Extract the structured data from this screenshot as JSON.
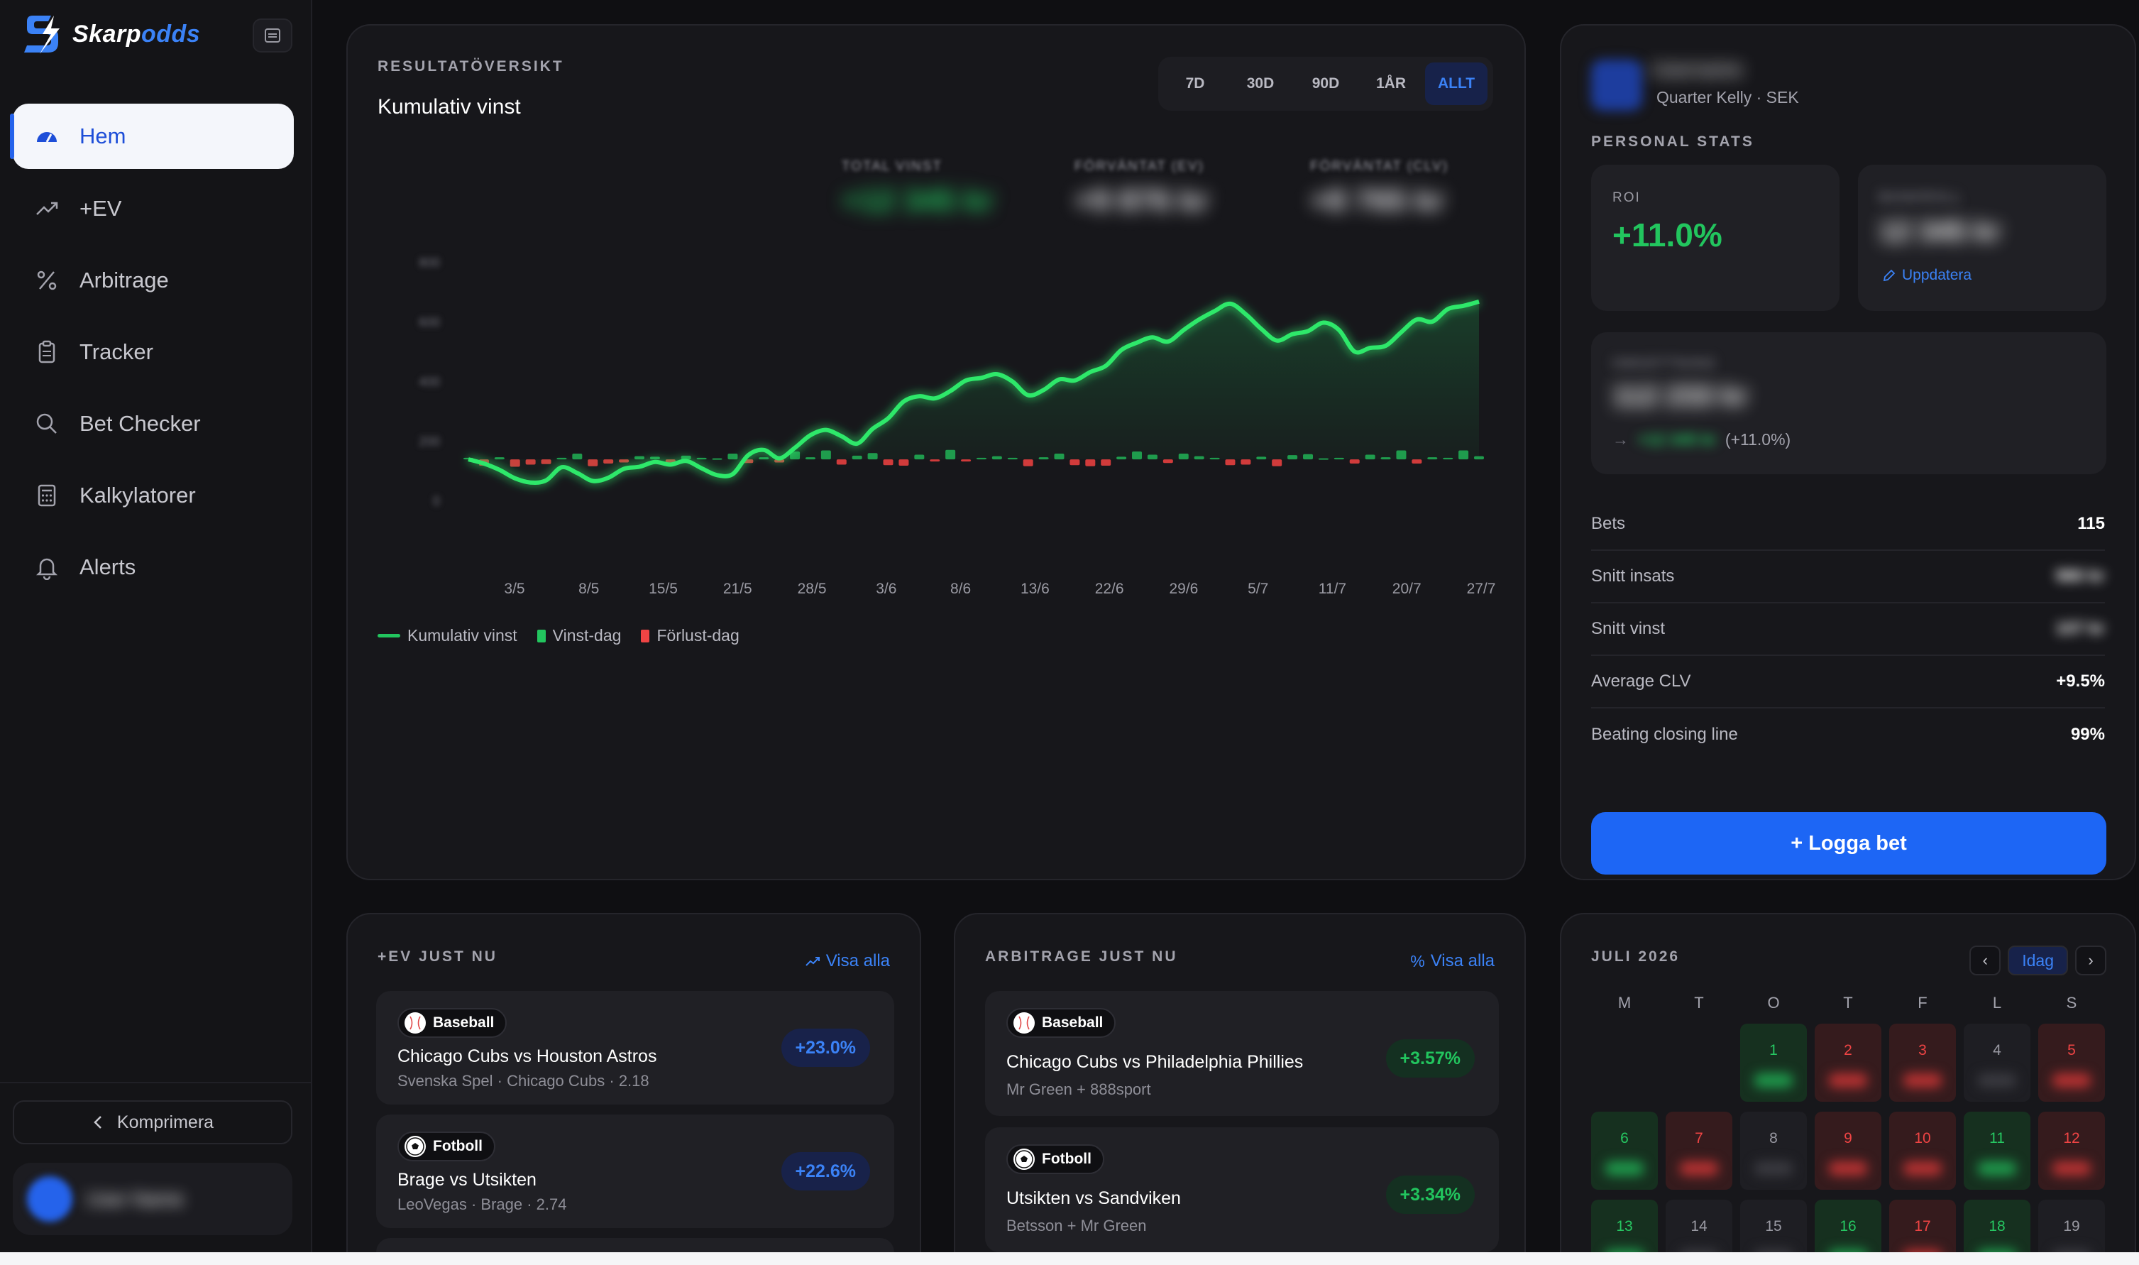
{
  "brand": {
    "name_main": "Skarp",
    "name_accent": "odds"
  },
  "sidebar": {
    "items": [
      {
        "label": "Hem",
        "icon": "dashboard-icon",
        "active": true
      },
      {
        "label": "+EV",
        "icon": "trending-up-icon"
      },
      {
        "label": "Arbitrage",
        "icon": "percent-icon"
      },
      {
        "label": "Tracker",
        "icon": "clipboard-icon"
      },
      {
        "label": "Bet Checker",
        "icon": "search-icon"
      },
      {
        "label": "Kalkylatorer",
        "icon": "calculator-icon"
      },
      {
        "label": "Alerts",
        "icon": "bell-icon"
      }
    ],
    "collapse_label": "Komprimera",
    "user_name": "User Name"
  },
  "overview": {
    "section": "RESULTATÖVERSIKT",
    "title": "Kumulativ vinst",
    "ranges": [
      "7D",
      "30D",
      "90D",
      "1ÅR",
      "ALLT"
    ],
    "active_range": "ALLT",
    "metrics": [
      {
        "label": "TOTAL VINST",
        "value": "+12 345 kr",
        "color": "#22c55e"
      },
      {
        "label": "FÖRVÄNTAT (EV)",
        "value": "+9 876 kr",
        "color": "#e8e8ec"
      },
      {
        "label": "FÖRVÄNTAT (CLV)",
        "value": "+8 765 kr",
        "color": "#e8e8ec"
      }
    ],
    "legend": {
      "line": "Kumulativ vinst",
      "win": "Vinst-dag",
      "loss": "Förlust-dag"
    }
  },
  "chart_data": {
    "type": "line",
    "x_labels": [
      "3/5",
      "8/5",
      "15/5",
      "21/5",
      "28/5",
      "3/6",
      "8/6",
      "13/6",
      "22/6",
      "29/6",
      "5/7",
      "11/7",
      "20/7",
      "27/7"
    ],
    "y_labels_blurred": [
      "800",
      "600",
      "400",
      "200",
      "0"
    ],
    "ylim": [
      -120,
      420
    ],
    "cumulative": [
      0,
      -8,
      -20,
      -36,
      -44,
      -40,
      -15,
      -26,
      -41,
      -35,
      -18,
      -14,
      -5,
      -10,
      -3,
      -17,
      -30,
      -28,
      8,
      18,
      2,
      22,
      46,
      56,
      44,
      30,
      58,
      78,
      110,
      120,
      116,
      130,
      150,
      155,
      162,
      148,
      122,
      132,
      152,
      150,
      166,
      178,
      208,
      222,
      232,
      224,
      246,
      266,
      282,
      296,
      276,
      248,
      226,
      238,
      244,
      260,
      246,
      205,
      212,
      216,
      242,
      266,
      262,
      286,
      292,
      300
    ],
    "daily": [
      3,
      -12,
      4,
      -14,
      -10,
      -9,
      3,
      11,
      -13,
      -8,
      -6,
      6,
      5,
      -9,
      7,
      3,
      2,
      11,
      -7,
      4,
      -6,
      15,
      4,
      17,
      -10,
      7,
      12,
      -11,
      -12,
      9,
      -4,
      18,
      -4,
      3,
      6,
      3,
      -13,
      4,
      11,
      -11,
      -13,
      -12,
      5,
      15,
      9,
      -7,
      11,
      6,
      3,
      -11,
      -10,
      5,
      -13,
      8,
      10,
      2,
      3,
      -8,
      9,
      4,
      17,
      -8,
      4,
      3,
      17,
      6
    ]
  },
  "profile": {
    "name": "Username",
    "subtitle": "Quarter Kelly · SEK",
    "section": "PERSONAL STATS",
    "roi_label": "ROI",
    "roi_value": "+11.0%",
    "bankroll_label": "BANKROLL",
    "bankroll_value": "12 345 kr",
    "update_label": "Uppdatera",
    "turnover_label": "OMSÄTTNING",
    "turnover_value": "112 233 kr",
    "turnover_profit": "+12 345 kr",
    "turnover_pct": "(+11.0%)",
    "stats": [
      {
        "label": "Bets",
        "value": "115",
        "blurred": false
      },
      {
        "label": "Snitt insats",
        "value": "980 kr",
        "blurred": true
      },
      {
        "label": "Snitt vinst",
        "value": "107 kr",
        "blurred": true
      },
      {
        "label": "Average CLV",
        "value": "+9.5%",
        "blurred": false
      },
      {
        "label": "Beating closing line",
        "value": "99%",
        "blurred": false
      }
    ],
    "log_button": "+ Logga bet"
  },
  "ev": {
    "section": "+EV JUST NU",
    "view_all": "Visa alla",
    "items": [
      {
        "sport": "Baseball",
        "match": "Chicago Cubs vs Houston Astros",
        "detail": "Svenska Spel · Chicago Cubs · 2.18",
        "pct": "+23.0%"
      },
      {
        "sport": "Fotboll",
        "match": "Brage vs Utsikten",
        "detail": "LeoVegas · Brage · 2.74",
        "pct": "+22.6%"
      }
    ]
  },
  "arb": {
    "section": "ARBITRAGE JUST NU",
    "view_all": "Visa alla",
    "items": [
      {
        "sport": "Baseball",
        "match": "Chicago Cubs vs Philadelphia Phillies",
        "detail": "Mr Green + 888sport",
        "pct": "+3.57%"
      },
      {
        "sport": "Fotboll",
        "match": "Utsikten vs Sandviken",
        "detail": "Betsson + Mr Green",
        "pct": "+3.34%"
      }
    ]
  },
  "calendar": {
    "title": "JULI 2026",
    "today_label": "Idag",
    "weekdays": [
      "M",
      "T",
      "O",
      "T",
      "F",
      "L",
      "S"
    ],
    "start_offset": 2,
    "days": [
      {
        "d": "1",
        "s": "win"
      },
      {
        "d": "2",
        "s": "loss"
      },
      {
        "d": "3",
        "s": "loss"
      },
      {
        "d": "4",
        "s": "neutral"
      },
      {
        "d": "5",
        "s": "loss"
      },
      {
        "d": "6",
        "s": "win"
      },
      {
        "d": "7",
        "s": "loss"
      },
      {
        "d": "8",
        "s": "neutral"
      },
      {
        "d": "9",
        "s": "loss"
      },
      {
        "d": "10",
        "s": "loss"
      },
      {
        "d": "11",
        "s": "win"
      },
      {
        "d": "12",
        "s": "loss"
      },
      {
        "d": "13",
        "s": "win"
      },
      {
        "d": "14",
        "s": "neutral"
      },
      {
        "d": "15",
        "s": "neutral"
      },
      {
        "d": "16",
        "s": "win"
      },
      {
        "d": "17",
        "s": "loss"
      },
      {
        "d": "18",
        "s": "win"
      },
      {
        "d": "19",
        "s": "neutral"
      }
    ]
  },
  "colors": {
    "accent": "#1d66f5",
    "win": "#22c55e",
    "loss": "#ef4444",
    "panel": "#17171b"
  }
}
